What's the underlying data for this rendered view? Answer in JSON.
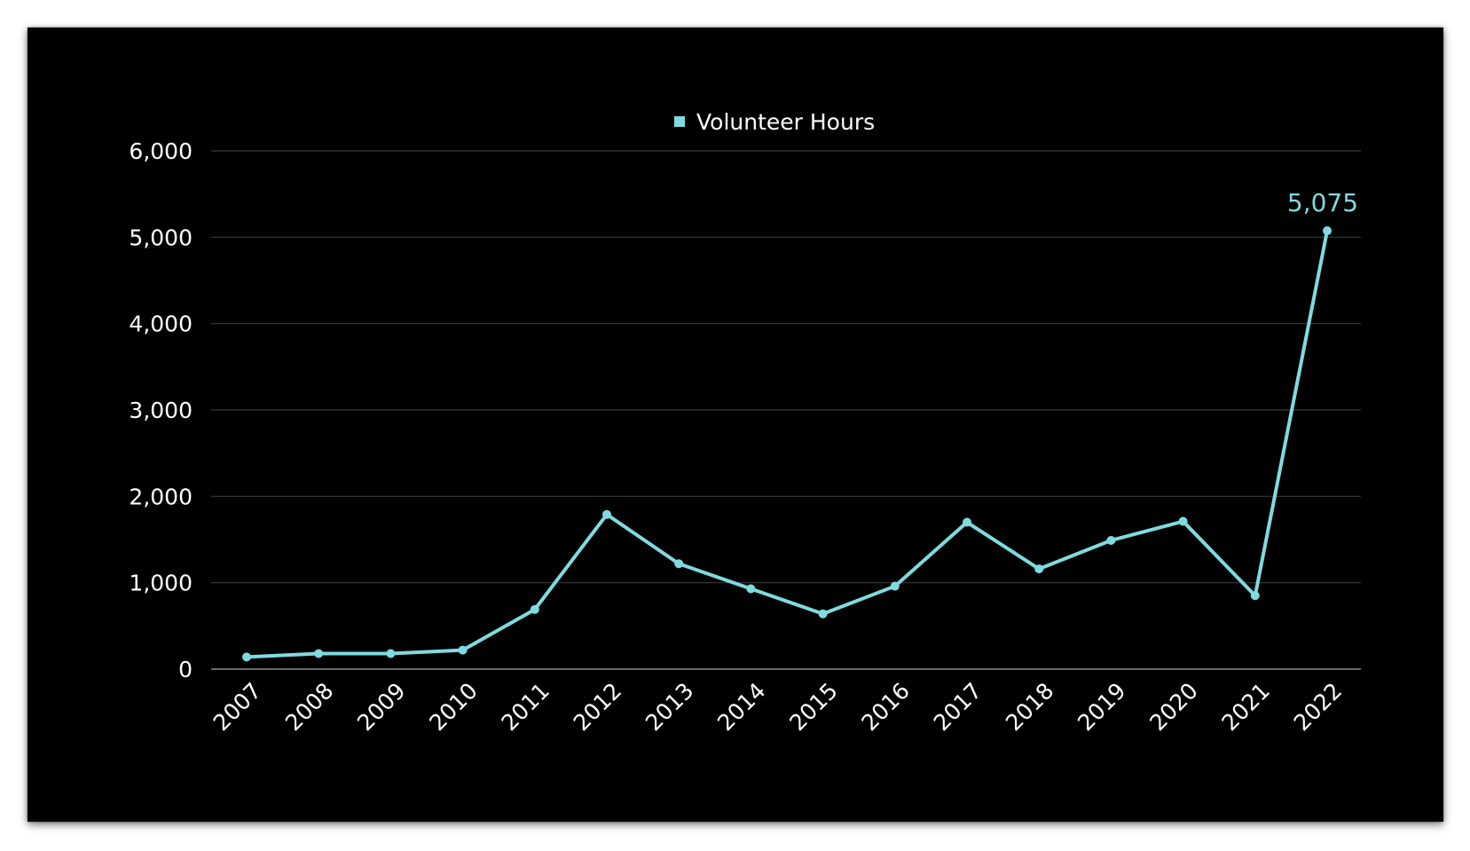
{
  "chart_data": {
    "type": "line",
    "categories": [
      "2007",
      "2008",
      "2009",
      "2010",
      "2011",
      "2012",
      "2013",
      "2014",
      "2015",
      "2016",
      "2017",
      "2018",
      "2019",
      "2020",
      "2021",
      "2022"
    ],
    "series": [
      {
        "name": "Volunteer Hours",
        "values": [
          140,
          180,
          180,
          220,
          690,
          1790,
          1220,
          930,
          640,
          960,
          1700,
          1160,
          1490,
          1710,
          850,
          5075
        ],
        "color": "#7fdbdf"
      }
    ],
    "ylim": [
      0,
      6000
    ],
    "yticks": [
      0,
      1000,
      2000,
      3000,
      4000,
      5000,
      6000
    ],
    "ytick_labels": [
      "0",
      "1,000",
      "2,000",
      "3,000",
      "4,000",
      "5,000",
      "6,000"
    ],
    "data_labels": [
      {
        "category": "2022",
        "text": "5,075"
      }
    ],
    "legend": {
      "position": "top-center"
    },
    "grid": true,
    "background": "#000000",
    "gridline_color": "#3a3a3a",
    "text_color": "#ffffff"
  }
}
